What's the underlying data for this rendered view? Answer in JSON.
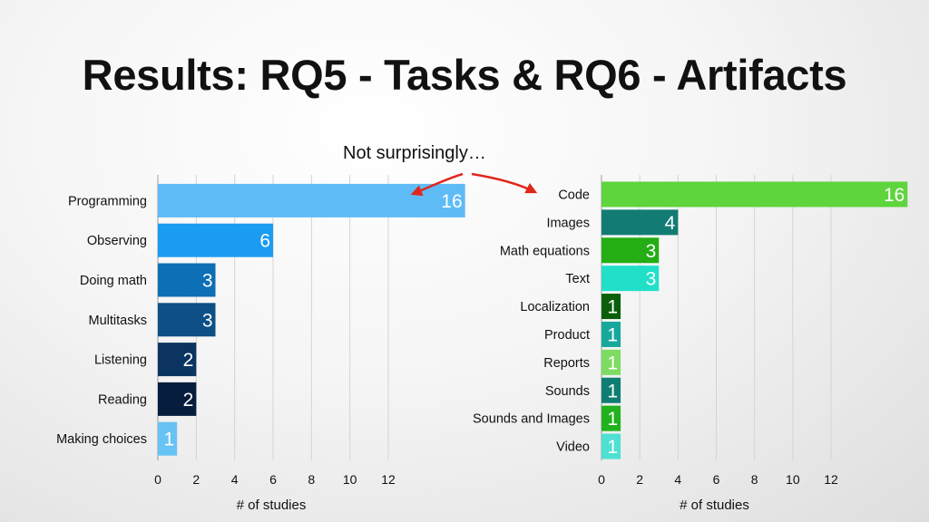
{
  "slide": {
    "title": "Results: RQ5 - Tasks & RQ6 - Artifacts",
    "annotation": "Not surprisingly…",
    "arrow_color": "#e0261b"
  },
  "chart_data": [
    {
      "type": "bar",
      "orientation": "horizontal",
      "categories": [
        "Programming",
        "Observing",
        "Doing math",
        "Multitasks",
        "Listening",
        "Reading",
        "Making choices"
      ],
      "values": [
        16,
        6,
        3,
        3,
        2,
        2,
        1
      ],
      "colors": [
        "#5ebbf6",
        "#1a9cf2",
        "#0d6fb5",
        "#0e4f86",
        "#0b3461",
        "#071d3e",
        "#66c3f3"
      ],
      "xlabel": "# of studies",
      "xticks": [
        0,
        2,
        4,
        6,
        8,
        10,
        12
      ],
      "xlim": [
        0,
        12
      ],
      "grid": true,
      "data_labels": [
        "16",
        "6",
        "3",
        "3",
        "2",
        "2",
        "1"
      ]
    },
    {
      "type": "bar",
      "orientation": "horizontal",
      "categories": [
        "Code",
        "Images",
        "Math equations",
        "Text",
        "Localization",
        "Product",
        "Reports",
        "Sounds",
        "Sounds and Images",
        "Video"
      ],
      "values": [
        16,
        4,
        3,
        3,
        1,
        1,
        1,
        1,
        1,
        1
      ],
      "colors": [
        "#5ed43d",
        "#127c74",
        "#24ad14",
        "#22e0c8",
        "#0b5f0a",
        "#17a89c",
        "#7edc62",
        "#0f7e72",
        "#22b21e",
        "#4ee0d2"
      ],
      "xlabel": "# of studies",
      "xticks": [
        0,
        2,
        4,
        6,
        8,
        10,
        12
      ],
      "xlim": [
        0,
        12
      ],
      "grid": true,
      "data_labels": [
        "16",
        "4",
        "3",
        "3",
        "1",
        "1",
        "1",
        "1",
        "1",
        "1"
      ]
    }
  ]
}
